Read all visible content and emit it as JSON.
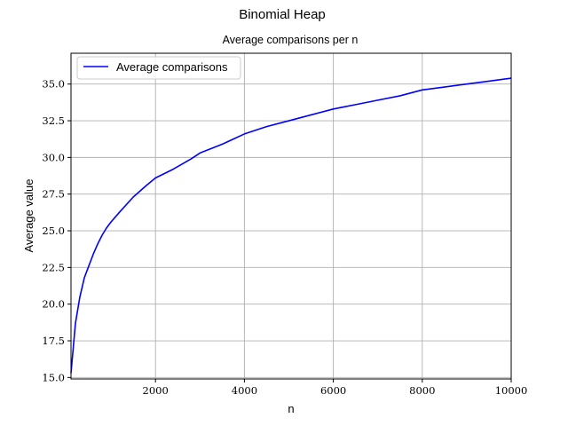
{
  "figure_title": "Binomial Heap",
  "chart_data": {
    "type": "line",
    "title": "Average comparisons per n",
    "xlabel": "n",
    "ylabel": "Average value",
    "xlim": [
      100,
      10000
    ],
    "ylim": [
      14.9,
      37.1
    ],
    "xticks": [
      2000,
      4000,
      6000,
      8000,
      10000
    ],
    "xtick_labels": [
      "2000",
      "4000",
      "6000",
      "8000",
      "10000"
    ],
    "yticks": [
      15.0,
      17.5,
      20.0,
      22.5,
      25.0,
      27.5,
      30.0,
      32.5,
      35.0
    ],
    "ytick_labels": [
      "15.0",
      "17.5",
      "20.0",
      "22.5",
      "25.0",
      "27.5",
      "30.0",
      "32.5",
      "35.0"
    ],
    "grid": true,
    "legend_position": "upper-left",
    "series": [
      {
        "name": "Average comparisons",
        "color": "#0000ff",
        "x": [
          100,
          200,
          300,
          400,
          500,
          600,
          700,
          800,
          900,
          1000,
          1200,
          1500,
          1800,
          2000,
          2400,
          2800,
          3000,
          3500,
          4000,
          4500,
          5000,
          5500,
          6000,
          6500,
          7000,
          7500,
          8000,
          8500,
          9000,
          9500,
          10000
        ],
        "y": [
          15.3,
          18.7,
          20.5,
          21.8,
          22.6,
          23.4,
          24.1,
          24.7,
          25.2,
          25.6,
          26.3,
          27.3,
          28.1,
          28.6,
          29.2,
          29.9,
          30.3,
          30.9,
          31.6,
          32.1,
          32.5,
          32.9,
          33.3,
          33.6,
          33.9,
          34.2,
          34.6,
          34.8,
          35.0,
          35.2,
          35.4
        ]
      }
    ]
  }
}
